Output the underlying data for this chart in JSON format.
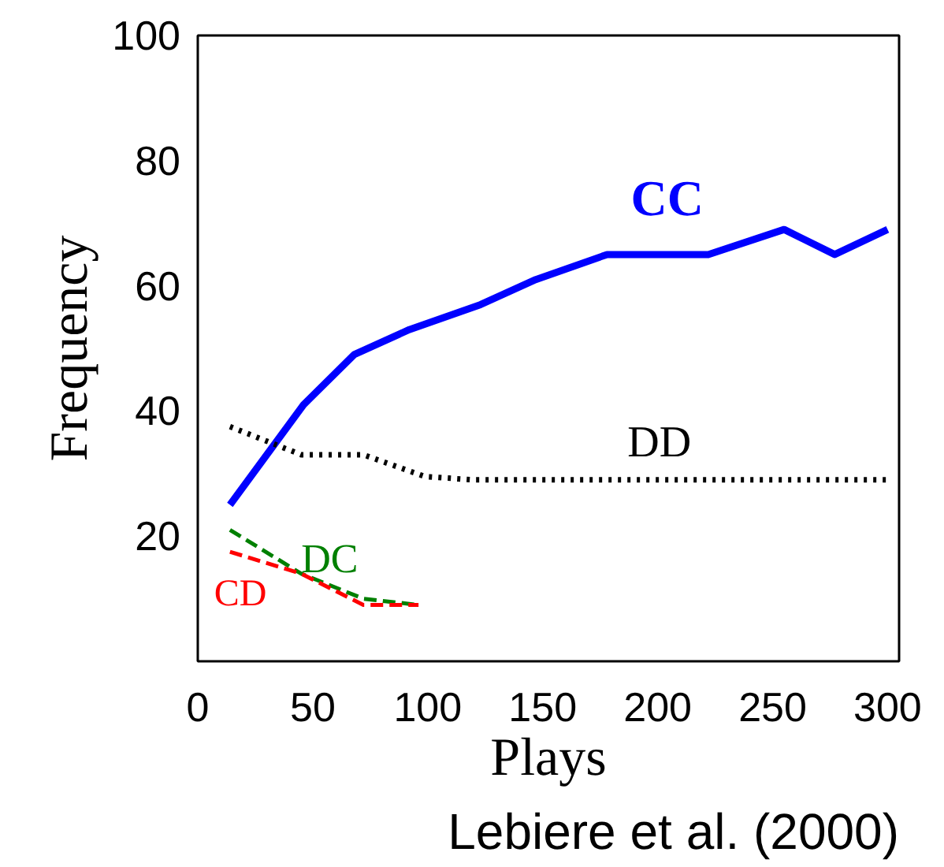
{
  "chart_data": {
    "type": "line",
    "xlabel": "Plays",
    "ylabel": "Frequency",
    "xlim": [
      0,
      305
    ],
    "ylim": [
      0,
      100
    ],
    "xticks": [
      0,
      50,
      100,
      150,
      200,
      250,
      300
    ],
    "yticks": [
      20,
      40,
      60,
      80,
      100
    ],
    "grid": false,
    "annotations": [
      "Lebiere et al. (2000)"
    ],
    "series": [
      {
        "name": "CC",
        "color": "#0000ff",
        "line_style": "solid",
        "x": [
          14,
          46,
          68,
          92,
          123,
          147,
          178,
          222,
          255,
          277,
          300
        ],
        "values": [
          25,
          41,
          49,
          53,
          57,
          61,
          65,
          65,
          69,
          65,
          69
        ]
      },
      {
        "name": "DD",
        "color": "#000000",
        "line_style": "dotted",
        "x": [
          14,
          45,
          72,
          99,
          120,
          150,
          180,
          210,
          240,
          270,
          300
        ],
        "values": [
          37.5,
          33,
          33,
          29.5,
          29,
          29,
          29,
          29,
          29,
          29,
          29
        ]
      },
      {
        "name": "DC",
        "color": "#008000",
        "line_style": "dashed",
        "x": [
          14,
          45,
          72,
          96
        ],
        "values": [
          21,
          14,
          10,
          9
        ]
      },
      {
        "name": "CD",
        "color": "#ff0000",
        "line_style": "dashed",
        "x": [
          14,
          45,
          72,
          96
        ],
        "values": [
          17.5,
          14,
          9,
          9
        ]
      }
    ]
  }
}
